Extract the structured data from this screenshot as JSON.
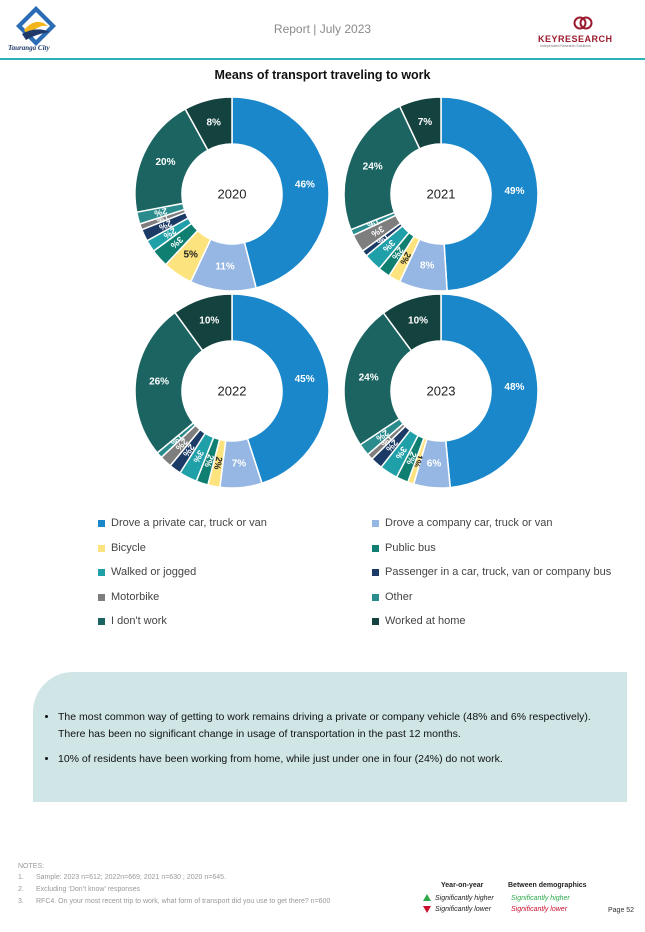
{
  "header": {
    "title": "Report | July 2023",
    "left_logo_text": "Tauranga City",
    "right_logo_text": "KEYRESEARCH",
    "right_logo_sub": "Independent Research Solutions"
  },
  "colors": {
    "private_car": "#1a87cb",
    "company_car": "#96b7e3",
    "bicycle": "#fde37d",
    "public_bus": "#0f7f72",
    "walked": "#1f9fa8",
    "passenger": "#1b3b66",
    "motorbike": "#7e7e7e",
    "other": "#2b8c8d",
    "dont_work": "#1b6461",
    "worked_home": "#14433f",
    "header_rule": "#2bb3b9",
    "summary_bg": "#cfe5e6",
    "up_arrow": "#2ea84b",
    "down_arrow": "#c8102e"
  },
  "chart_data": {
    "type": "pie",
    "title": "Means of transport traveling to work",
    "categories": [
      "Drove a private car, truck or van",
      "Drove a company car, truck or van",
      "Bicycle",
      "Public bus",
      "Walked or jogged",
      "Passenger in a car, truck, van or company bus",
      "Motorbike",
      "Other",
      "I don't work",
      "Worked at home"
    ],
    "legend_placement": "bottom",
    "series": [
      {
        "name": "2020",
        "values": [
          46,
          11,
          5,
          3,
          2,
          2,
          1,
          2,
          20,
          8
        ]
      },
      {
        "name": "2021",
        "values": [
          49,
          8,
          2,
          2,
          3,
          1,
          3,
          1,
          24,
          7
        ]
      },
      {
        "name": "2022",
        "values": [
          45,
          7,
          2,
          2,
          3,
          2,
          2,
          1,
          26,
          10
        ]
      },
      {
        "name": "2023",
        "values": [
          48,
          6,
          1,
          2,
          3,
          2,
          1,
          2,
          24,
          10
        ]
      }
    ],
    "labels": [
      [
        "46%",
        "11%",
        "5%",
        "3%",
        "2%",
        "2%",
        "1%",
        "2%",
        "20%",
        "8%"
      ],
      [
        "49%",
        "8%",
        "2%",
        "2%",
        "3%",
        "1%",
        "3%",
        "1%",
        "24%",
        "7%"
      ],
      [
        "45%",
        "7%",
        "2%",
        "2%",
        "3%",
        "2%",
        "2%",
        "1%",
        "26%",
        "10%"
      ],
      [
        "48%",
        "6%",
        "1%",
        "2%",
        "3%",
        "2%",
        "1%",
        "2%",
        "24%",
        "10%"
      ]
    ]
  },
  "summary": {
    "bullets": [
      "The most common way of getting to work remains driving a private or company vehicle (48% and 6% respectively). There has been no significant change in usage of transportation in the past 12 months.",
      "10% of residents have been working from home, while just under one in four (24%) do not work."
    ]
  },
  "notes": {
    "heading": "NOTES:",
    "items": [
      {
        "num": "1.",
        "text": "Sample: 2023 n=612; 2022n=669; 2021 n=630 ; 2020 n=645."
      },
      {
        "num": "2.",
        "text": "Excluding ‘Don’t know’ responses"
      },
      {
        "num": "3.",
        "text": "RFC4. On your most recent trip to work, what form of transport did you use to get there? n=600"
      }
    ]
  },
  "key": {
    "year_on_year": "Year-on-year",
    "between_demographics": "Between demographics",
    "sig_higher": "Significantly higher",
    "sig_lower": "Significantly lower"
  },
  "footer": {
    "page": "Page 52"
  }
}
